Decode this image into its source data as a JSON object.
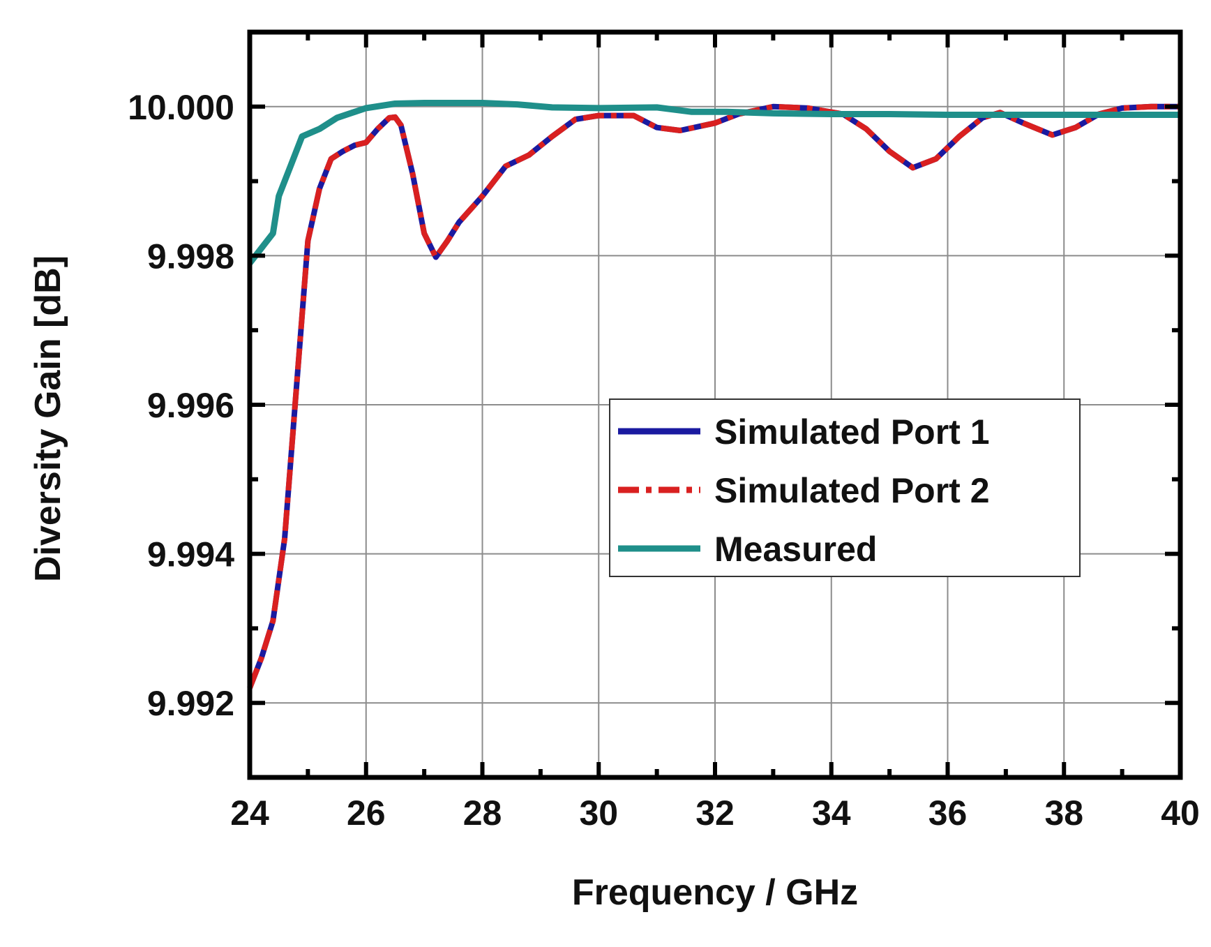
{
  "colors": {
    "port1": "#1a1aa0",
    "port2": "#d92020",
    "measured": "#1f8f8a",
    "grid": "#8c8c8c",
    "axes": "#000000"
  },
  "chart_data": {
    "type": "line",
    "title": "",
    "xlabel": "Frequency / GHz",
    "ylabel": "Diversity Gain [dB]",
    "xlim": [
      24,
      40
    ],
    "ylim": [
      9.991,
      10.001
    ],
    "xticks": [
      24,
      26,
      28,
      30,
      32,
      34,
      36,
      38,
      40
    ],
    "xtick_labels": [
      "24",
      "26",
      "28",
      "30",
      "32",
      "34",
      "36",
      "38",
      "40"
    ],
    "yticks": [
      9.992,
      9.994,
      9.996,
      9.998,
      10.0
    ],
    "ytick_labels": [
      "9.992",
      "9.994",
      "9.996",
      "9.998",
      "10.000"
    ],
    "grid": true,
    "legend_position": "center-right",
    "series": [
      {
        "name": "Simulated Port 1",
        "color": "#1a1aa0",
        "style": "solid",
        "points": [
          [
            24.0,
            9.9922
          ],
          [
            24.2,
            9.9926
          ],
          [
            24.4,
            9.9931
          ],
          [
            24.6,
            9.9942
          ],
          [
            24.8,
            9.9962
          ],
          [
            25.0,
            9.9982
          ],
          [
            25.2,
            9.9989
          ],
          [
            25.4,
            9.9993
          ],
          [
            25.6,
            9.9994
          ],
          [
            25.8,
            9.99948
          ],
          [
            26.0,
            9.99952
          ],
          [
            26.2,
            9.9997
          ],
          [
            26.4,
            9.99985
          ],
          [
            26.5,
            9.99986
          ],
          [
            26.6,
            9.99975
          ],
          [
            26.8,
            9.9991
          ],
          [
            27.0,
            9.9983
          ],
          [
            27.2,
            9.99798
          ],
          [
            27.4,
            9.9982
          ],
          [
            27.6,
            9.99845
          ],
          [
            28.0,
            9.9988
          ],
          [
            28.4,
            9.9992
          ],
          [
            28.8,
            9.99935
          ],
          [
            29.2,
            9.9996
          ],
          [
            29.6,
            9.99983
          ],
          [
            30.0,
            9.99988
          ],
          [
            30.6,
            9.99988
          ],
          [
            31.0,
            9.99972
          ],
          [
            31.4,
            9.99968
          ],
          [
            32.0,
            9.99978
          ],
          [
            32.4,
            9.9999
          ],
          [
            33.0,
            10.0
          ],
          [
            33.6,
            9.99998
          ],
          [
            34.2,
            9.9999
          ],
          [
            34.6,
            9.9997
          ],
          [
            35.0,
            9.9994
          ],
          [
            35.4,
            9.99918
          ],
          [
            35.8,
            9.9993
          ],
          [
            36.2,
            9.9996
          ],
          [
            36.6,
            9.99985
          ],
          [
            36.9,
            9.99992
          ],
          [
            37.3,
            9.99978
          ],
          [
            37.8,
            9.99962
          ],
          [
            38.2,
            9.99972
          ],
          [
            38.6,
            9.9999
          ],
          [
            39.0,
            9.99998
          ],
          [
            39.5,
            10.0
          ],
          [
            40.0,
            10.0
          ]
        ]
      },
      {
        "name": "Simulated Port 2",
        "color": "#d92020",
        "style": "dash-dot",
        "points": [
          [
            24.0,
            9.9922
          ],
          [
            24.2,
            9.9926
          ],
          [
            24.4,
            9.9931
          ],
          [
            24.6,
            9.9942
          ],
          [
            24.8,
            9.9962
          ],
          [
            25.0,
            9.9982
          ],
          [
            25.2,
            9.9989
          ],
          [
            25.4,
            9.9993
          ],
          [
            25.6,
            9.9994
          ],
          [
            25.8,
            9.99948
          ],
          [
            26.0,
            9.99952
          ],
          [
            26.2,
            9.9997
          ],
          [
            26.4,
            9.99985
          ],
          [
            26.5,
            9.99986
          ],
          [
            26.6,
            9.99975
          ],
          [
            26.8,
            9.9991
          ],
          [
            27.0,
            9.9983
          ],
          [
            27.2,
            9.99798
          ],
          [
            27.4,
            9.9982
          ],
          [
            27.6,
            9.99845
          ],
          [
            28.0,
            9.9988
          ],
          [
            28.4,
            9.9992
          ],
          [
            28.8,
            9.99935
          ],
          [
            29.2,
            9.9996
          ],
          [
            29.6,
            9.99983
          ],
          [
            30.0,
            9.99988
          ],
          [
            30.6,
            9.99988
          ],
          [
            31.0,
            9.99972
          ],
          [
            31.4,
            9.99968
          ],
          [
            32.0,
            9.99978
          ],
          [
            32.4,
            9.9999
          ],
          [
            33.0,
            10.0
          ],
          [
            33.6,
            9.99998
          ],
          [
            34.2,
            9.9999
          ],
          [
            34.6,
            9.9997
          ],
          [
            35.0,
            9.9994
          ],
          [
            35.4,
            9.99918
          ],
          [
            35.8,
            9.9993
          ],
          [
            36.2,
            9.9996
          ],
          [
            36.6,
            9.99985
          ],
          [
            36.9,
            9.99992
          ],
          [
            37.3,
            9.99978
          ],
          [
            37.8,
            9.99962
          ],
          [
            38.2,
            9.99972
          ],
          [
            38.6,
            9.9999
          ],
          [
            39.0,
            9.99998
          ],
          [
            39.5,
            10.0
          ],
          [
            40.0,
            10.0
          ]
        ]
      },
      {
        "name": "Measured",
        "color": "#1f8f8a",
        "style": "solid",
        "points": [
          [
            24.0,
            9.9979
          ],
          [
            24.2,
            9.9981
          ],
          [
            24.4,
            9.9983
          ],
          [
            24.5,
            9.9988
          ],
          [
            24.7,
            9.9992
          ],
          [
            24.9,
            9.9996
          ],
          [
            25.2,
            9.9997
          ],
          [
            25.5,
            9.99985
          ],
          [
            26.0,
            9.99998
          ],
          [
            26.5,
            10.00004
          ],
          [
            27.0,
            10.00005
          ],
          [
            28.0,
            10.00005
          ],
          [
            28.6,
            10.00003
          ],
          [
            29.2,
            9.99999
          ],
          [
            30.0,
            9.99998
          ],
          [
            31.0,
            9.99999
          ],
          [
            31.6,
            9.99993
          ],
          [
            32.2,
            9.99993
          ],
          [
            33.0,
            9.99991
          ],
          [
            34.0,
            9.9999
          ],
          [
            35.0,
            9.9999
          ],
          [
            36.0,
            9.99989
          ],
          [
            37.0,
            9.99989
          ],
          [
            38.0,
            9.99989
          ],
          [
            39.0,
            9.99989
          ],
          [
            40.0,
            9.99989
          ]
        ]
      }
    ]
  }
}
